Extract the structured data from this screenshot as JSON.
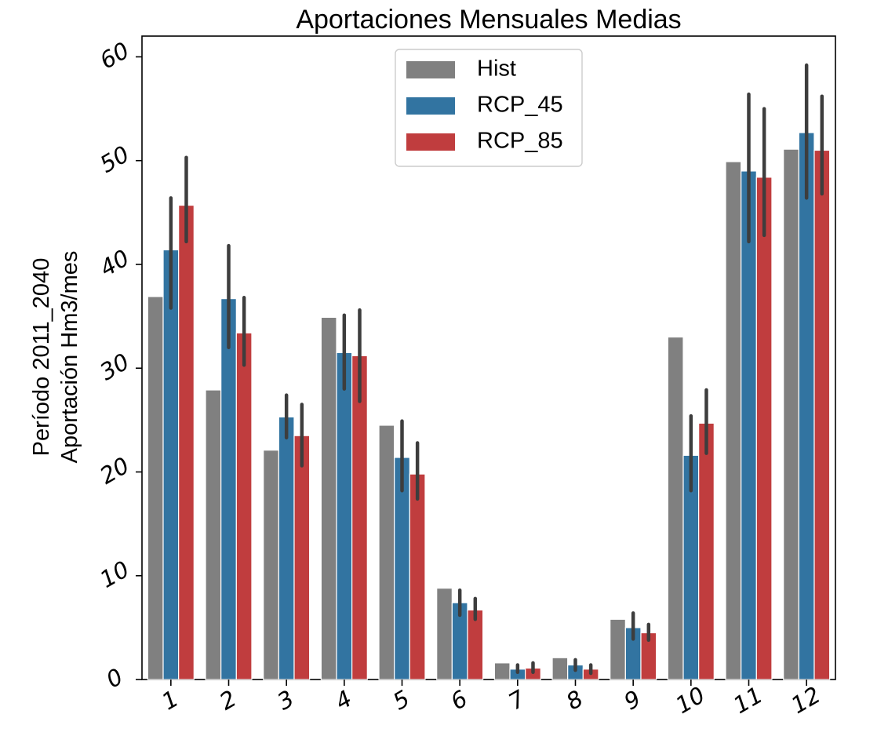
{
  "chart_data": {
    "type": "bar",
    "title": "Aportaciones Mensuales Medias",
    "ylabel_lines": [
      "Período 2011_2040",
      "Aportación Hm3/mes"
    ],
    "xlabel": "",
    "categories": [
      "1",
      "2",
      "3",
      "4",
      "5",
      "6",
      "7",
      "8",
      "9",
      "10",
      "11",
      "12"
    ],
    "ylim": [
      0,
      62
    ],
    "yticks": [
      0,
      10,
      20,
      30,
      40,
      50,
      60
    ],
    "grid": false,
    "legend_position": "upper-center",
    "series": [
      {
        "name": "Hist",
        "color": "#808080",
        "values": [
          36.9,
          27.9,
          22.1,
          34.9,
          24.5,
          8.8,
          1.6,
          2.1,
          5.8,
          33.0,
          49.9,
          51.1
        ]
      },
      {
        "name": "RCP_45",
        "color": "#3274a1",
        "values": [
          41.4,
          36.7,
          25.3,
          31.5,
          21.4,
          7.4,
          1.0,
          1.4,
          5.0,
          21.6,
          49.0,
          52.7
        ],
        "err_low": [
          35.8,
          32.0,
          23.3,
          28.0,
          18.2,
          6.2,
          0.7,
          0.9,
          3.9,
          18.2,
          42.2,
          46.4
        ],
        "err_high": [
          46.4,
          41.8,
          27.4,
          35.1,
          24.9,
          8.6,
          1.4,
          1.9,
          6.4,
          25.4,
          56.4,
          59.2
        ]
      },
      {
        "name": "RCP_85",
        "color": "#c03d3e",
        "values": [
          45.7,
          33.4,
          23.5,
          31.2,
          19.8,
          6.7,
          1.1,
          1.0,
          4.5,
          24.7,
          48.4,
          51.0
        ],
        "err_low": [
          42.2,
          30.3,
          20.6,
          26.8,
          17.4,
          5.8,
          0.7,
          0.6,
          3.8,
          21.8,
          42.8,
          46.8
        ],
        "err_high": [
          50.3,
          36.8,
          26.5,
          35.6,
          22.8,
          7.8,
          1.6,
          1.4,
          5.3,
          27.9,
          55.0,
          56.2
        ]
      }
    ],
    "error_bar_color": "#3d3d3d"
  }
}
